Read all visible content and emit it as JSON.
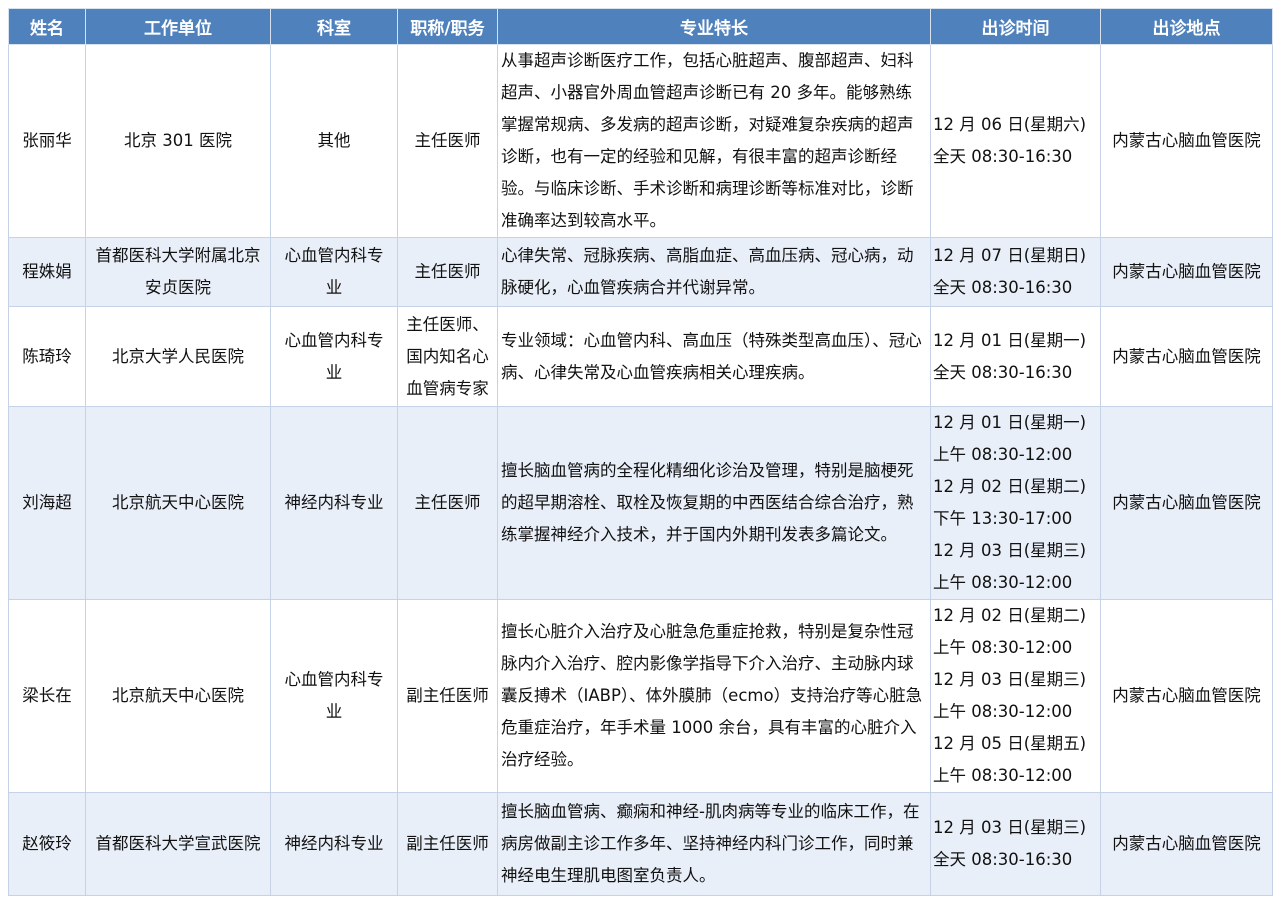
{
  "headers": [
    "姓名",
    "工作单位",
    "科室",
    "职称/职务",
    "专业特长",
    "出诊时间",
    "出诊地点"
  ],
  "colors": {
    "header_bg": "#4f81bd",
    "header_text": "#ffffff",
    "alt_row_bg": "#e9eff8"
  },
  "rows": [
    {
      "name": "张丽华",
      "unit": [
        "北京 301 医院"
      ],
      "dept": [
        "其他"
      ],
      "title": [
        "主任医师"
      ],
      "specialty": "从事超声诊断医疗工作，包括心脏超声、腹部超声、妇科超声、小器官外周血管超声诊断已有 20 多年。能够熟练掌握常规病、多发病的超声诊断，对疑难复杂疾病的超声诊断，也有一定的经验和见解，有很丰富的超声诊断经验。与临床诊断、手术诊断和病理诊断等标准对比，诊断准确率达到较高水平。",
      "schedule": [
        "12 月 06 日(星期六)",
        "全天 08:30-16:30"
      ],
      "location": "内蒙古心脑血管医院"
    },
    {
      "name": "程姝娟",
      "unit": [
        "首都医科大学附属北京",
        "安贞医院"
      ],
      "dept": [
        "心血管内科专",
        "业"
      ],
      "title": [
        "主任医师"
      ],
      "specialty": "心律失常、冠脉疾病、高脂血症、高血压病、冠心病，动脉硬化，心血管疾病合并代谢异常。",
      "schedule": [
        "12 月 07 日(星期日)",
        "全天 08:30-16:30"
      ],
      "location": "内蒙古心脑血管医院"
    },
    {
      "name": "陈琦玲",
      "unit": [
        "北京大学人民医院"
      ],
      "dept": [
        "心血管内科专",
        "业"
      ],
      "title": [
        "主任医师、",
        "国内知名心",
        "血管病专家"
      ],
      "specialty": "专业领域：心血管内科、高血压（特殊类型高血压）、冠心病、心律失常及心血管疾病相关心理疾病。",
      "schedule": [
        "12 月 01 日(星期一)",
        "全天 08:30-16:30"
      ],
      "location": "内蒙古心脑血管医院"
    },
    {
      "name": "刘海超",
      "unit": [
        "北京航天中心医院"
      ],
      "dept": [
        "神经内科专业"
      ],
      "title": [
        "主任医师"
      ],
      "specialty": "擅长脑血管病的全程化精细化诊治及管理，特别是脑梗死的超早期溶栓、取栓及恢复期的中西医结合综合治疗，熟练掌握神经介入技术，并于国内外期刊发表多篇论文。",
      "schedule": [
        "12 月 01 日(星期一)",
        "上午 08:30-12:00",
        "12 月 02 日(星期二)",
        "下午 13:30-17:00",
        "12 月 03 日(星期三)",
        "上午 08:30-12:00"
      ],
      "location": "内蒙古心脑血管医院"
    },
    {
      "name": "梁长在",
      "unit": [
        "北京航天中心医院"
      ],
      "dept": [
        "心血管内科专",
        "业"
      ],
      "title": [
        "副主任医师"
      ],
      "specialty": "擅长心脏介入治疗及心脏急危重症抢救，特别是复杂性冠脉内介入治疗、腔内影像学指导下介入治疗、主动脉内球囊反搏术（IABP）、体外膜肺（ecmo）支持治疗等心脏急危重症治疗，年手术量 1000 余台，具有丰富的心脏介入治疗经验。",
      "schedule": [
        "12 月 02 日(星期二)",
        "上午 08:30-12:00",
        "12 月 03 日(星期三)",
        "上午 08:30-12:00",
        "12 月 05 日(星期五)",
        "上午 08:30-12:00"
      ],
      "location": "内蒙古心脑血管医院"
    },
    {
      "name": "赵筱玲",
      "unit": [
        "首都医科大学宣武医院"
      ],
      "dept": [
        "神经内科专业"
      ],
      "title": [
        "副主任医师"
      ],
      "specialty": "擅长脑血管病、癫痫和神经-肌肉病等专业的临床工作，在病房做副主诊工作多年、坚持神经内科门诊工作，同时兼神经电生理肌电图室负责人。",
      "schedule": [
        "12 月 03 日(星期三)",
        "全天 08:30-16:30"
      ],
      "location": "内蒙古心脑血管医院"
    }
  ]
}
